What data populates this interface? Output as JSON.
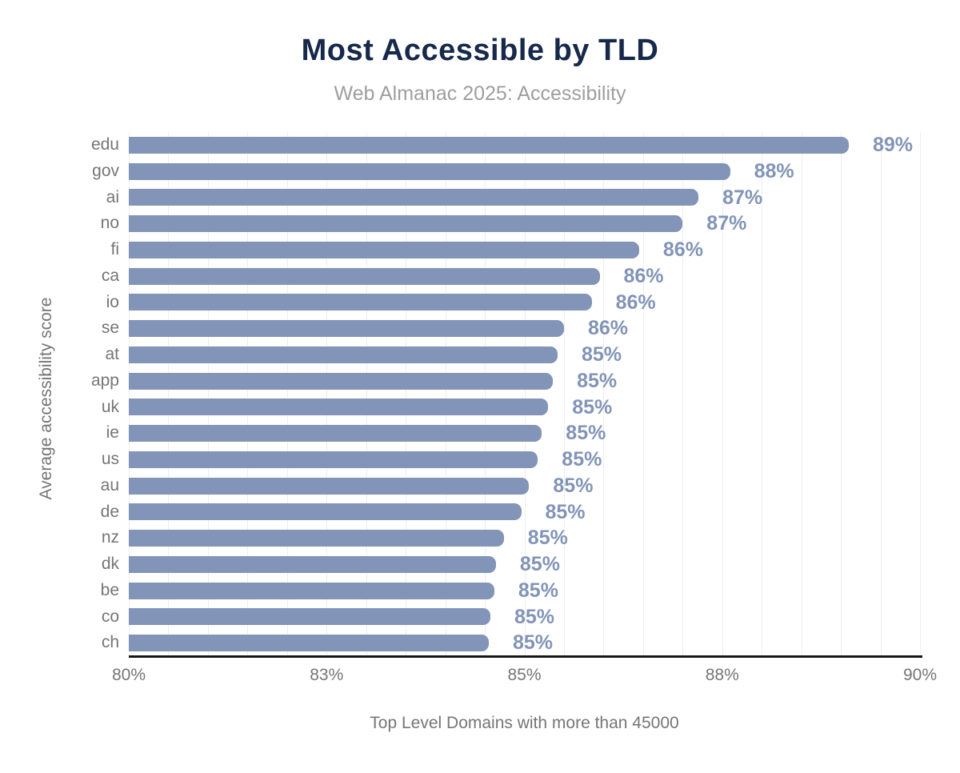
{
  "chart_data": {
    "type": "bar",
    "orientation": "horizontal",
    "title": "Most Accessible by TLD",
    "subtitle": "Web Almanac 2025: Accessibility",
    "xlabel": "Top Level Domains with more than 45000",
    "ylabel": "Average accessibility score",
    "categories": [
      "edu",
      "gov",
      "ai",
      "no",
      "fi",
      "ca",
      "io",
      "se",
      "at",
      "app",
      "uk",
      "ie",
      "us",
      "au",
      "de",
      "nz",
      "dk",
      "be",
      "co",
      "ch"
    ],
    "values": [
      89.1,
      87.6,
      87.2,
      87.0,
      86.45,
      85.95,
      85.85,
      85.5,
      85.42,
      85.36,
      85.3,
      85.22,
      85.17,
      85.06,
      84.96,
      84.74,
      84.64,
      84.62,
      84.57,
      84.55
    ],
    "value_labels": [
      "89%",
      "88%",
      "87%",
      "87%",
      "86%",
      "86%",
      "86%",
      "86%",
      "85%",
      "85%",
      "85%",
      "85%",
      "85%",
      "85%",
      "85%",
      "85%",
      "85%",
      "85%",
      "85%",
      "85%"
    ],
    "xlim": [
      80,
      90
    ],
    "x_ticks": [
      {
        "value": 80,
        "label": "80%"
      },
      {
        "value": 82.5,
        "label": "83%"
      },
      {
        "value": 85,
        "label": "85%"
      },
      {
        "value": 87.5,
        "label": "88%"
      },
      {
        "value": 90,
        "label": "90%"
      }
    ],
    "grid_step": 0.5,
    "grid": "vertical-on",
    "legend": "none",
    "colors": {
      "bar": "#8294b7",
      "value_label": "#8294b7",
      "title": "#16294b",
      "subtitle": "#9e9e9e",
      "axis_text": "#757575",
      "axis_line": "#161616",
      "gridline": "#ededed",
      "background": "#ffffff"
    }
  }
}
